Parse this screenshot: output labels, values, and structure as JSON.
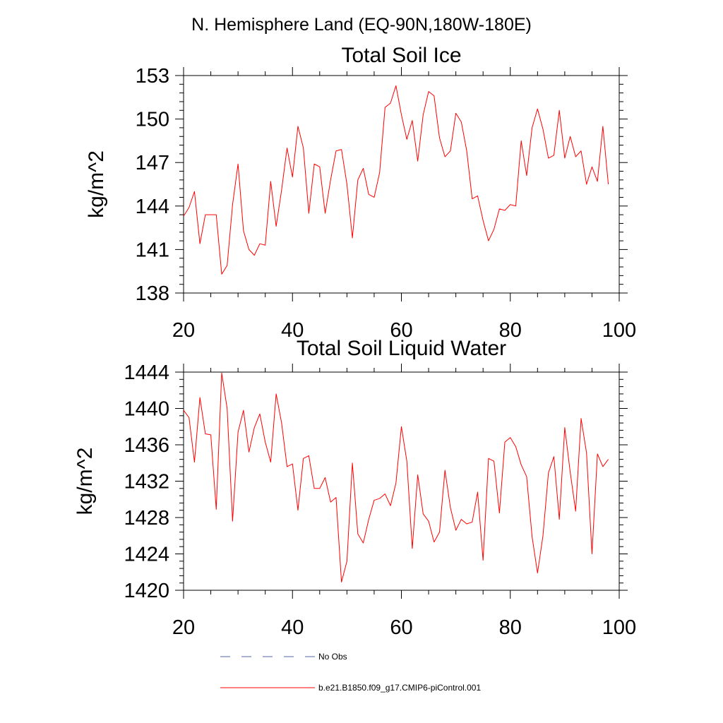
{
  "page": {
    "title": "N. Hemisphere Land (EQ-90N,180W-180E)"
  },
  "colors": {
    "series_line": "#ff0000",
    "obs_line": "#5566aa",
    "axis": "#000000"
  },
  "legend": {
    "obs_label": "No Obs",
    "model_label": "b.e21.B1850.f09_g17.CMIP6-piControl.001"
  },
  "chart_data": [
    {
      "type": "line",
      "title": "Total Soil Ice",
      "xlabel": "",
      "ylabel": "kg/m^2",
      "xlim": [
        20,
        100
      ],
      "ylim": [
        138,
        153
      ],
      "xticks": [
        "20",
        "40",
        "60",
        "80",
        "100"
      ],
      "yticks": [
        "138",
        "141",
        "144",
        "147",
        "150",
        "153"
      ],
      "x": [
        20,
        21,
        22,
        23,
        24,
        25,
        26,
        27,
        28,
        29,
        30,
        31,
        32,
        33,
        34,
        35,
        36,
        37,
        38,
        39,
        40,
        41,
        42,
        43,
        44,
        45,
        46,
        47,
        48,
        49,
        50,
        51,
        52,
        53,
        54,
        55,
        56,
        57,
        58,
        59,
        60,
        61,
        62,
        63,
        64,
        65,
        66,
        67,
        68,
        69,
        70,
        71,
        72,
        73,
        74,
        75,
        76,
        77,
        78,
        79,
        80,
        81,
        82,
        83,
        84,
        85,
        86,
        87,
        88,
        89,
        90,
        91,
        92,
        93,
        94,
        95,
        96,
        97,
        98
      ],
      "series": [
        {
          "name": "b.e21.B1850.f09_g17.CMIP6-piControl.001",
          "values": [
            143.3,
            143.9,
            145.0,
            141.4,
            143.4,
            143.4,
            143.4,
            139.3,
            139.9,
            144.1,
            146.9,
            142.3,
            141.0,
            140.6,
            141.4,
            141.3,
            145.7,
            142.6,
            145.1,
            148.0,
            146.0,
            149.5,
            148.0,
            143.5,
            146.9,
            146.7,
            143.5,
            145.8,
            147.8,
            147.9,
            145.5,
            141.8,
            145.8,
            146.6,
            144.8,
            144.6,
            146.3,
            150.8,
            151.1,
            152.3,
            150.3,
            148.6,
            149.9,
            147.1,
            150.3,
            151.9,
            151.6,
            148.7,
            147.4,
            147.8,
            150.4,
            149.8,
            147.8,
            144.5,
            144.7,
            143.0,
            141.6,
            142.4,
            143.8,
            143.7,
            144.1,
            144.0,
            148.5,
            146.1,
            149.4,
            150.7,
            149.3,
            147.3,
            147.5,
            150.6,
            147.3,
            148.8,
            147.4,
            147.8,
            145.5,
            146.7,
            145.7,
            149.5,
            145.5
          ]
        }
      ]
    },
    {
      "type": "line",
      "title": "Total Soil Liquid Water",
      "xlabel": "",
      "ylabel": "kg/m^2",
      "xlim": [
        20,
        100
      ],
      "ylim": [
        1420,
        1444
      ],
      "xticks": [
        "20",
        "40",
        "60",
        "80",
        "100"
      ],
      "yticks": [
        "1420",
        "1424",
        "1428",
        "1432",
        "1436",
        "1440",
        "1444"
      ],
      "x": [
        20,
        21,
        22,
        23,
        24,
        25,
        26,
        27,
        28,
        29,
        30,
        31,
        32,
        33,
        34,
        35,
        36,
        37,
        38,
        39,
        40,
        41,
        42,
        43,
        44,
        45,
        46,
        47,
        48,
        49,
        50,
        51,
        52,
        53,
        54,
        55,
        56,
        57,
        58,
        59,
        60,
        61,
        62,
        63,
        64,
        65,
        66,
        67,
        68,
        69,
        70,
        71,
        72,
        73,
        74,
        75,
        76,
        77,
        78,
        79,
        80,
        81,
        82,
        83,
        84,
        85,
        86,
        87,
        88,
        89,
        90,
        91,
        92,
        93,
        94,
        95,
        96,
        97,
        98
      ],
      "series": [
        {
          "name": "b.e21.B1850.f09_g17.CMIP6-piControl.001",
          "values": [
            1439.8,
            1439.0,
            1434.1,
            1441.2,
            1437.2,
            1437.1,
            1428.9,
            1443.9,
            1440.0,
            1427.6,
            1437.4,
            1439.8,
            1435.2,
            1437.9,
            1439.4,
            1436.3,
            1434.1,
            1441.6,
            1438.4,
            1433.6,
            1433.9,
            1428.8,
            1434.5,
            1434.8,
            1431.2,
            1431.2,
            1432.4,
            1429.7,
            1430.2,
            1420.9,
            1423.2,
            1434.0,
            1426.2,
            1425.2,
            1427.8,
            1429.9,
            1430.1,
            1430.6,
            1429.3,
            1431.8,
            1438.0,
            1434.2,
            1424.6,
            1432.7,
            1428.4,
            1427.6,
            1425.3,
            1426.4,
            1433.2,
            1429.1,
            1426.6,
            1427.8,
            1427.3,
            1427.5,
            1430.8,
            1423.3,
            1434.5,
            1434.2,
            1428.5,
            1436.3,
            1436.8,
            1435.8,
            1433.8,
            1432.5,
            1425.9,
            1421.9,
            1426.0,
            1432.9,
            1434.7,
            1427.8,
            1437.9,
            1433.0,
            1428.7,
            1438.9,
            1435.1,
            1424.0,
            1435.0,
            1433.6,
            1434.4
          ]
        }
      ]
    }
  ]
}
